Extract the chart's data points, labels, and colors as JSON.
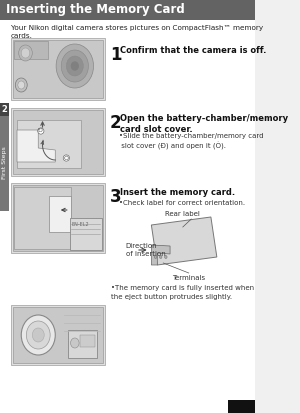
{
  "title": "Inserting the Memory Card",
  "title_color": "#ffffff",
  "intro_text": "Your Nikon digital camera stores pictures on CompactFlash™ memory\ncards.",
  "step1_num": "1",
  "step1_head": "Confirm that the camera is off.",
  "step2_num": "2",
  "step2_head": "Open the battery-chamber/memory\ncard slot cover.",
  "step2_bullet": "Slide the battery-chamber/memory card\n slot cover (Ð) and open it (Ò).",
  "step3_num": "3",
  "step3_head": "Insert the memory card.",
  "step3_bullet1": "Check label for correct orientation.",
  "step3_label_rear": "Rear label",
  "step3_label_dir": "Direction\nof insertion",
  "step3_label_term": "Terminals",
  "step3_bullet2": "The memory card is fully inserted when\nthe eject button protrudes slightly.",
  "sidebar_text": "First Steps",
  "sidebar_num": "2",
  "bg_color": "#f0f0f0",
  "header_bg": "#636363",
  "page_bg": "#f4f4f4"
}
